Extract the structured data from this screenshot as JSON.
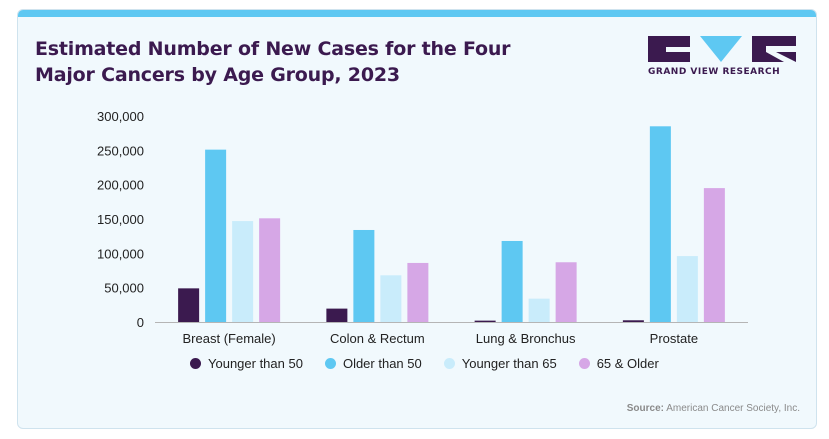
{
  "header": {
    "title_line1": "Estimated Number of New Cases for the Four",
    "title_line2": "Major Cancers by Age Group, 2023"
  },
  "logo": {
    "text": "GRAND VIEW RESEARCH",
    "color": "#3b1a4f",
    "accent": "#5ec8f2"
  },
  "source": {
    "label": "Source:",
    "text": "American Cancer Society, Inc."
  },
  "chart_data": {
    "type": "bar",
    "title": "Estimated Number of New Cases for the Four Major Cancers by Age Group, 2023",
    "xlabel": "",
    "ylabel": "",
    "categories": [
      "Breast (Female)",
      "Colon & Rectum",
      "Lung & Bronchus",
      "Prostate"
    ],
    "series": [
      {
        "name": "Younger than 50",
        "color": "#3b1a4f",
        "values": [
          49000,
          19500,
          2000,
          2500
        ]
      },
      {
        "name": "Older than 50",
        "color": "#5ec8f2",
        "values": [
          251000,
          134000,
          118000,
          285000
        ]
      },
      {
        "name": "Younger than 65",
        "color": "#c9ecfb",
        "values": [
          147000,
          68000,
          34000,
          96000
        ]
      },
      {
        "name": "65 & Older",
        "color": "#d6a7e6",
        "values": [
          151000,
          86000,
          87000,
          195000
        ]
      }
    ],
    "ylim": [
      0,
      300000
    ],
    "yticks": [
      0,
      50000,
      100000,
      150000,
      200000,
      250000,
      300000
    ],
    "ytick_labels": [
      "0",
      "50,000",
      "100,000",
      "150,000",
      "200,000",
      "250,000",
      "300,000"
    ],
    "grid": false,
    "legend_position": "bottom"
  }
}
